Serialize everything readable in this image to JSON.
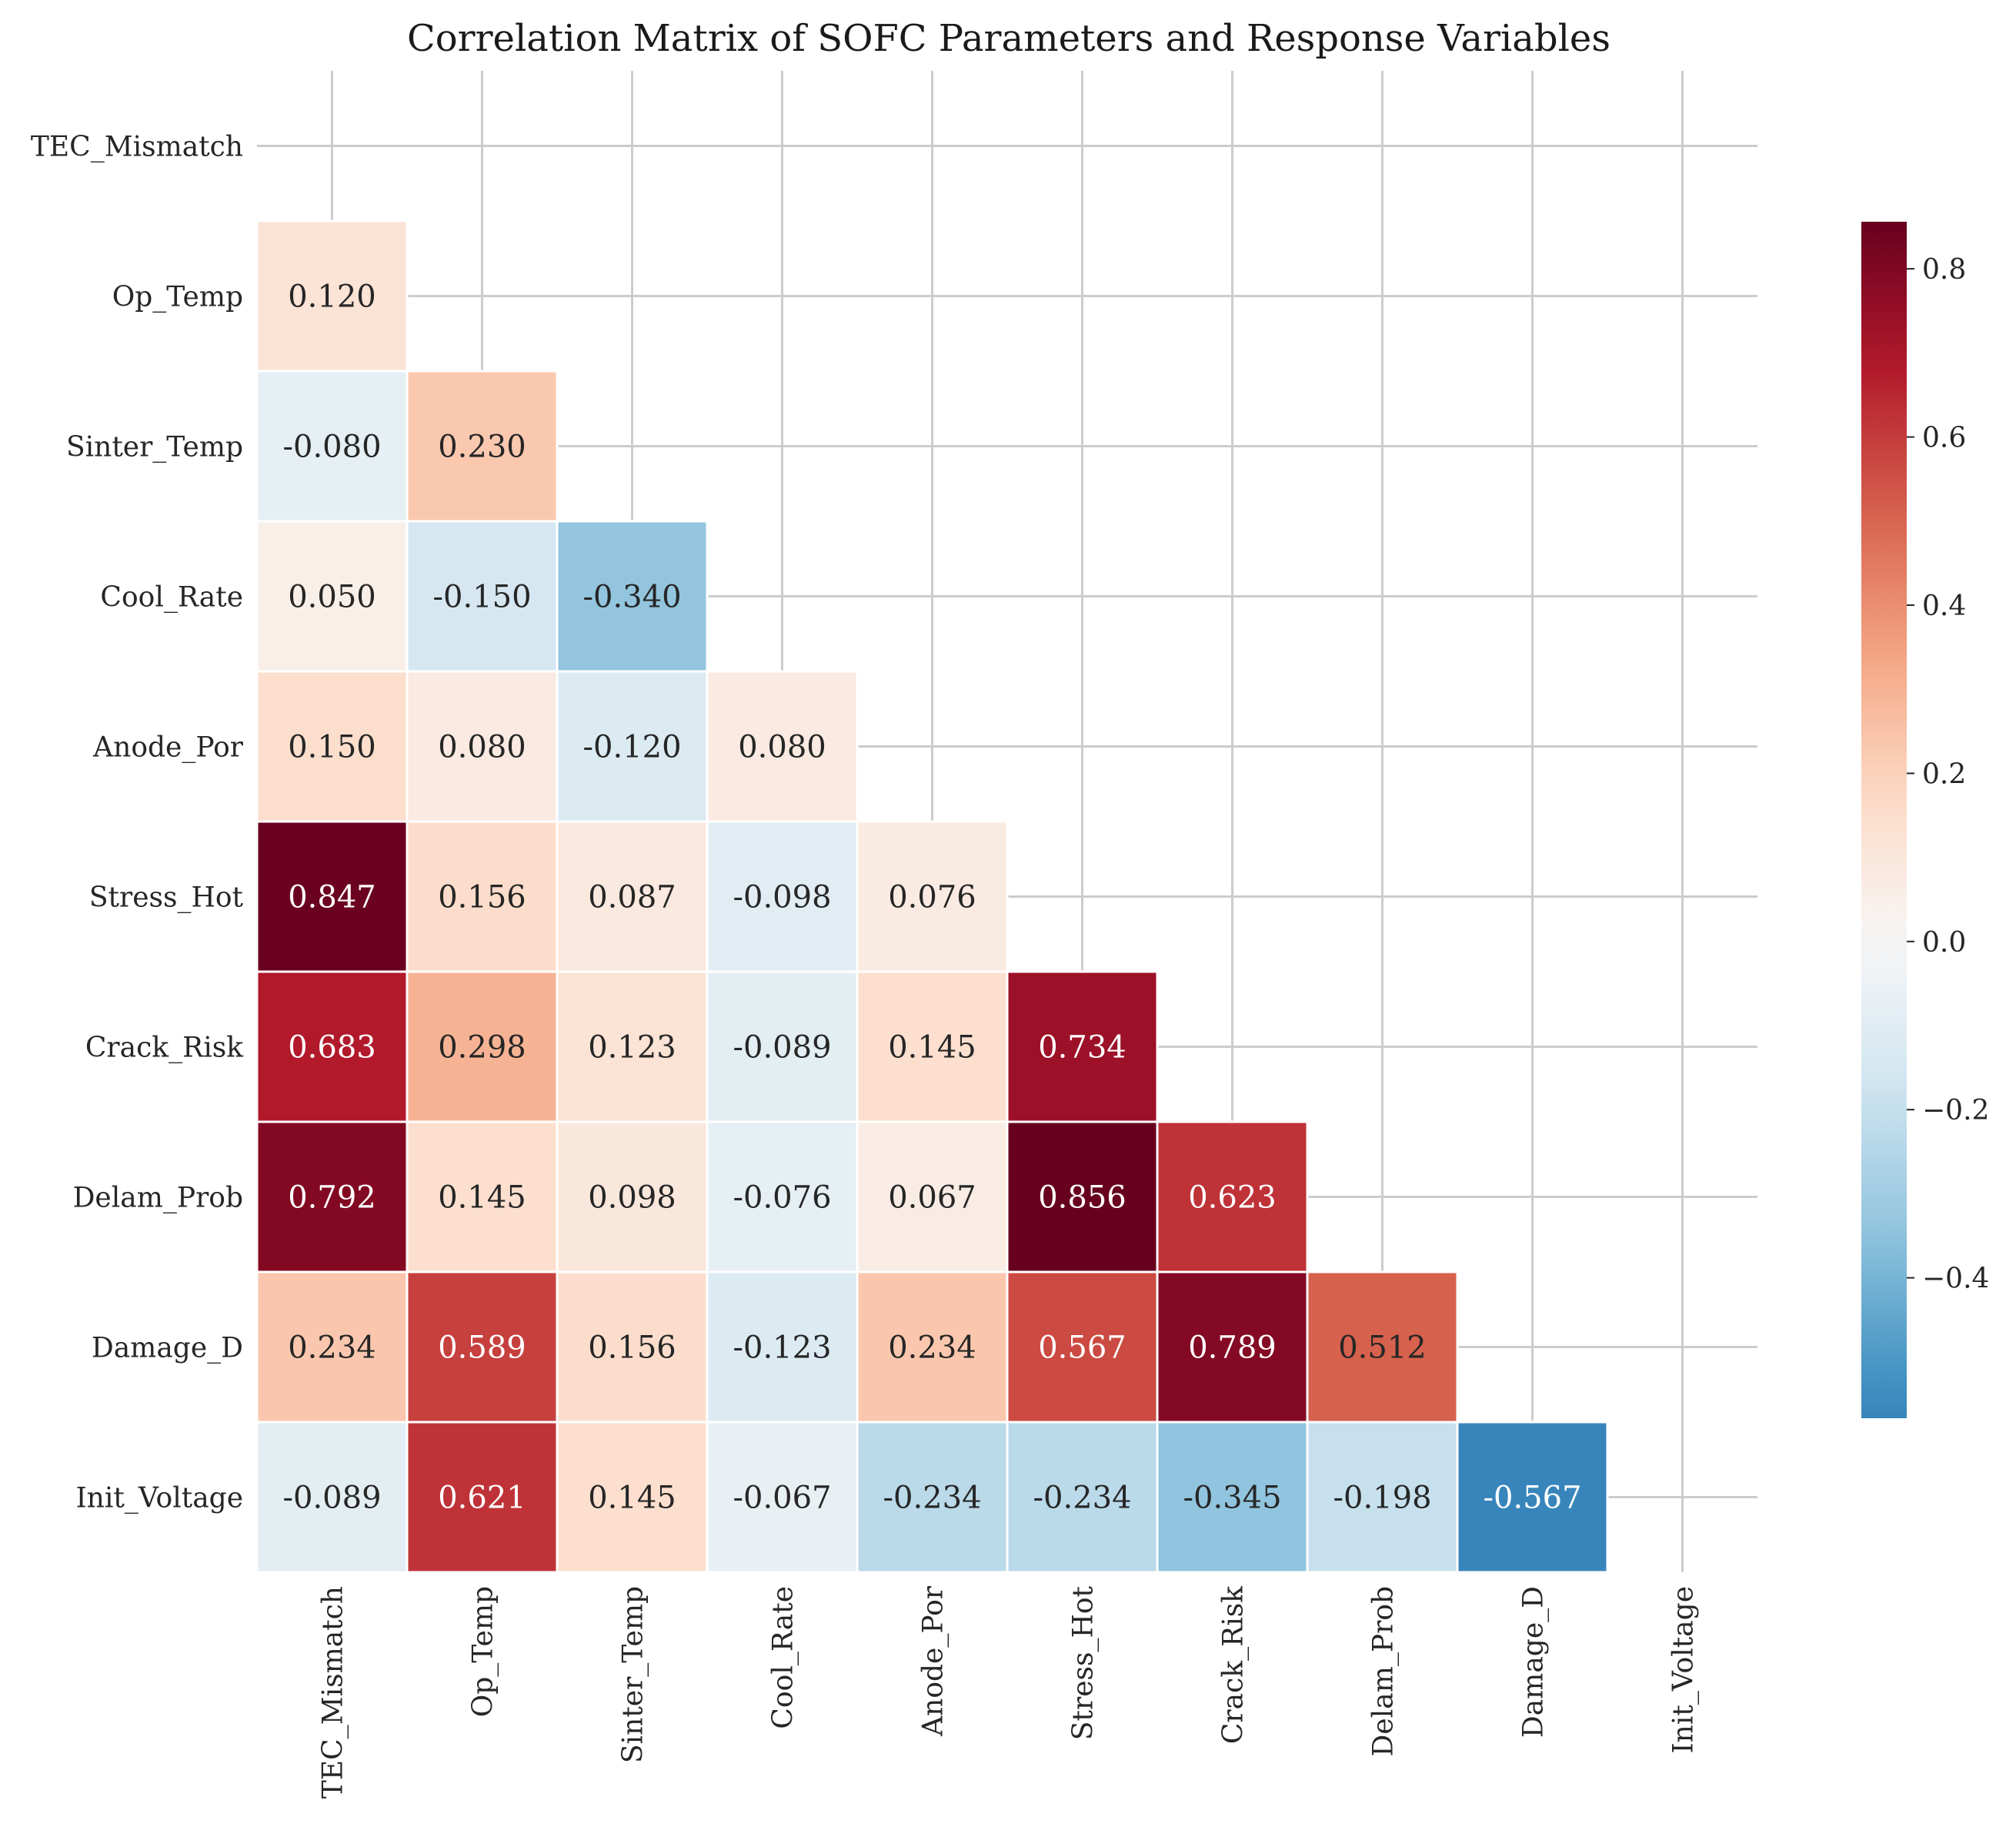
{
  "chart_data": {
    "type": "heatmap",
    "title": "Correlation Matrix of SOFC Parameters and Response Variables",
    "labels": [
      "TEC_Mismatch",
      "Op_Temp",
      "Sinter_Temp",
      "Cool_Rate",
      "Anode_Por",
      "Stress_Hot",
      "Crack_Risk",
      "Delam_Prob",
      "Damage_D",
      "Init_Voltage"
    ],
    "mask": "upper-triangle-including-diagonal",
    "matrix": [
      [
        null,
        null,
        null,
        null,
        null,
        null,
        null,
        null,
        null,
        null
      ],
      [
        0.12,
        null,
        null,
        null,
        null,
        null,
        null,
        null,
        null,
        null
      ],
      [
        -0.08,
        0.23,
        null,
        null,
        null,
        null,
        null,
        null,
        null,
        null
      ],
      [
        0.05,
        -0.15,
        -0.34,
        null,
        null,
        null,
        null,
        null,
        null,
        null
      ],
      [
        0.15,
        0.08,
        -0.12,
        0.08,
        null,
        null,
        null,
        null,
        null,
        null
      ],
      [
        0.847,
        0.156,
        0.087,
        -0.098,
        0.076,
        null,
        null,
        null,
        null,
        null
      ],
      [
        0.683,
        0.298,
        0.123,
        -0.089,
        0.145,
        0.734,
        null,
        null,
        null,
        null
      ],
      [
        0.792,
        0.145,
        0.098,
        -0.076,
        0.067,
        0.856,
        0.623,
        null,
        null,
        null
      ],
      [
        0.234,
        0.589,
        0.156,
        -0.123,
        0.234,
        0.567,
        0.789,
        0.512,
        null,
        null
      ],
      [
        -0.089,
        0.621,
        0.145,
        -0.067,
        -0.234,
        -0.234,
        -0.345,
        -0.198,
        -0.567,
        null
      ]
    ],
    "value_format": "3 decimals",
    "colormap": "RdBu_r",
    "color_center": 0.0,
    "vmin": -0.567,
    "vmax": 0.856,
    "colorbar": {
      "ticks": [
        0.8,
        0.6,
        0.4,
        0.2,
        0.0,
        -0.2,
        -0.4
      ],
      "tick_labels": [
        "0.8",
        "0.6",
        "0.4",
        "0.2",
        "0.0",
        "−0.2",
        "−0.4"
      ]
    },
    "grid": true,
    "cell_border_color": "#ffffff"
  }
}
